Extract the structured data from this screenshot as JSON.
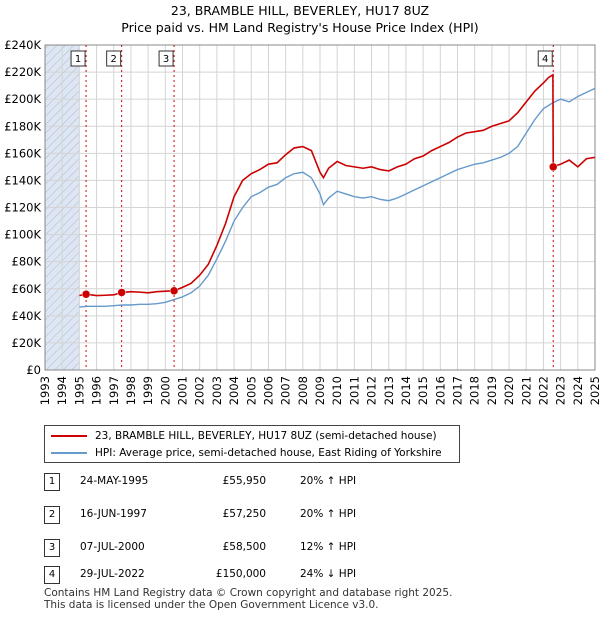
{
  "title_line1": "23, BRAMBLE HILL, BEVERLEY, HU17 8UZ",
  "title_line2": "Price paid vs. HM Land Registry's House Price Index (HPI)",
  "colors": {
    "price_line": "#cc0000",
    "hpi_line": "#6699cc",
    "shade": "#dde6f4",
    "marker": "#cc0000"
  },
  "legend": {
    "price_label": "23, BRAMBLE HILL, BEVERLEY, HU17 8UZ (semi-detached house)",
    "hpi_label": "HPI: Average price, semi-detached house, East Riding of Yorkshire"
  },
  "transactions": [
    {
      "num": "1",
      "date": "24-MAY-1995",
      "price": "£55,950",
      "hpi": "20% ↑ HPI"
    },
    {
      "num": "2",
      "date": "16-JUN-1997",
      "price": "£57,250",
      "hpi": "20% ↑ HPI"
    },
    {
      "num": "3",
      "date": "07-JUL-2000",
      "price": "£58,500",
      "hpi": "12% ↑ HPI"
    },
    {
      "num": "4",
      "date": "29-JUL-2022",
      "price": "£150,000",
      "hpi": "24% ↓ HPI"
    }
  ],
  "footer_line1": "Contains HM Land Registry data © Crown copyright and database right 2025.",
  "footer_line2": "This data is licensed under the Open Government Licence v3.0.",
  "chart_data": {
    "type": "line",
    "title": "23, BRAMBLE HILL, BEVERLEY, HU17 8UZ — Price paid vs. HM Land Registry's House Price Index (HPI)",
    "xlim": [
      1993,
      2025
    ],
    "ylim": [
      0,
      240000
    ],
    "x_ticks": [
      1993,
      1994,
      1995,
      1996,
      1997,
      1998,
      1999,
      2000,
      2001,
      2002,
      2003,
      2004,
      2005,
      2006,
      2007,
      2008,
      2009,
      2010,
      2011,
      2012,
      2013,
      2014,
      2015,
      2016,
      2017,
      2018,
      2019,
      2020,
      2021,
      2022,
      2023,
      2024,
      2025
    ],
    "y_ticks": [
      0,
      20000,
      40000,
      60000,
      80000,
      100000,
      120000,
      140000,
      160000,
      180000,
      200000,
      220000,
      240000
    ],
    "y_tick_labels": [
      "£0",
      "£20K",
      "£40K",
      "£60K",
      "£80K",
      "£100K",
      "£120K",
      "£140K",
      "£160K",
      "£180K",
      "£200K",
      "£220K",
      "£240K"
    ],
    "grid": true,
    "shaded_regions": [
      [
        1993,
        1995.0
      ],
      [
        2025.0,
        2025
      ]
    ],
    "sales": [
      {
        "label": "1",
        "x": 1995.39,
        "y": 55950
      },
      {
        "label": "2",
        "x": 1997.46,
        "y": 57250
      },
      {
        "label": "3",
        "x": 2000.51,
        "y": 58500
      },
      {
        "label": "4",
        "x": 2022.57,
        "y": 150000
      }
    ],
    "series": [
      {
        "name": "23, BRAMBLE HILL, BEVERLEY, HU17 8UZ (semi-detached house)",
        "x": [
          1995.0,
          1995.39,
          1996.0,
          1996.5,
          1997.0,
          1997.46,
          1998.0,
          1998.5,
          1999.0,
          1999.5,
          2000.0,
          2000.51,
          2001.0,
          2001.5,
          2002.0,
          2002.5,
          2003.0,
          2003.5,
          2004.0,
          2004.5,
          2005.0,
          2005.5,
          2006.0,
          2006.5,
          2007.0,
          2007.5,
          2008.0,
          2008.5,
          2009.0,
          2009.2,
          2009.5,
          2010.0,
          2010.5,
          2011.0,
          2011.5,
          2012.0,
          2012.5,
          2013.0,
          2013.5,
          2014.0,
          2014.5,
          2015.0,
          2015.5,
          2016.0,
          2016.5,
          2017.0,
          2017.5,
          2018.0,
          2018.5,
          2019.0,
          2019.5,
          2020.0,
          2020.5,
          2021.0,
          2021.5,
          2022.0,
          2022.3,
          2022.55,
          2022.57,
          2023.0,
          2023.5,
          2024.0,
          2024.5,
          2025.0
        ],
        "values": [
          55000,
          55950,
          55000,
          55200,
          55500,
          57250,
          57800,
          57500,
          57000,
          57800,
          58200,
          58500,
          61000,
          64000,
          70000,
          78000,
          92000,
          108000,
          128000,
          140000,
          145000,
          148000,
          152000,
          153000,
          159000,
          164000,
          165000,
          162000,
          146000,
          142000,
          149000,
          154000,
          151000,
          150000,
          149000,
          150000,
          148000,
          147000,
          150000,
          152000,
          156000,
          158000,
          162000,
          165000,
          168000,
          172000,
          175000,
          176000,
          177000,
          180000,
          182000,
          184000,
          190000,
          198000,
          206000,
          212000,
          216000,
          218000,
          150000,
          152000,
          155000,
          150000,
          156000,
          157000
        ]
      },
      {
        "name": "HPI: Average price, semi-detached house, East Riding of Yorkshire",
        "x": [
          1995.0,
          1995.5,
          1996.0,
          1996.5,
          1997.0,
          1997.5,
          1998.0,
          1998.5,
          1999.0,
          1999.5,
          2000.0,
          2000.5,
          2001.0,
          2001.5,
          2002.0,
          2002.5,
          2003.0,
          2003.5,
          2004.0,
          2004.5,
          2005.0,
          2005.5,
          2006.0,
          2006.5,
          2007.0,
          2007.5,
          2008.0,
          2008.5,
          2009.0,
          2009.2,
          2009.5,
          2010.0,
          2010.5,
          2011.0,
          2011.5,
          2012.0,
          2012.5,
          2013.0,
          2013.5,
          2014.0,
          2014.5,
          2015.0,
          2015.5,
          2016.0,
          2016.5,
          2017.0,
          2017.5,
          2018.0,
          2018.5,
          2019.0,
          2019.5,
          2020.0,
          2020.5,
          2021.0,
          2021.5,
          2022.0,
          2022.5,
          2023.0,
          2023.5,
          2024.0,
          2024.5,
          2025.0
        ],
        "values": [
          46500,
          47000,
          47000,
          47000,
          47500,
          48000,
          48000,
          48500,
          48500,
          49000,
          50000,
          52000,
          54000,
          57000,
          62000,
          70000,
          82000,
          95000,
          110000,
          120000,
          128000,
          131000,
          135000,
          137000,
          142000,
          145000,
          146000,
          142000,
          130000,
          122000,
          127000,
          132000,
          130000,
          128000,
          127000,
          128000,
          126000,
          125000,
          127000,
          130000,
          133000,
          136000,
          139000,
          142000,
          145000,
          148000,
          150000,
          152000,
          153000,
          155000,
          157000,
          160000,
          165000,
          175000,
          185000,
          193000,
          197000,
          200000,
          198000,
          202000,
          205000,
          208000
        ]
      }
    ]
  }
}
